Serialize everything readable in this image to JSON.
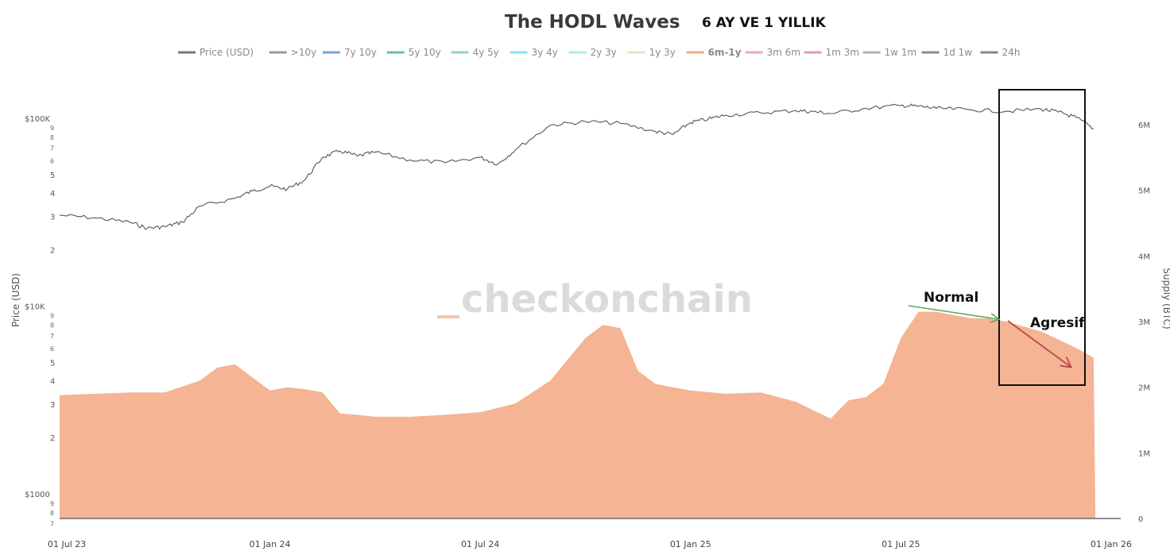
{
  "chart_data": {
    "type": "area",
    "title": "The HODL Waves",
    "subtitle": "6 AY VE 1 YILLIK",
    "watermark": "checkonchain",
    "legend": [
      {
        "label": "Price (USD)",
        "color": "#777777"
      },
      {
        "label": ">10y",
        "color": "#999999"
      },
      {
        "label": "7y 10y",
        "color": "#6fa8dc"
      },
      {
        "label": "5y 10y",
        "color": "#6dbf9e"
      },
      {
        "label": "4y 5y",
        "color": "#8fd8b0"
      },
      {
        "label": "3y 4y",
        "color": "#88e0f0"
      },
      {
        "label": "2y 3y",
        "color": "#b0ecd8"
      },
      {
        "label": "1y 3y",
        "color": "#d8ecc0"
      },
      {
        "label": "6m-1y",
        "color": "#f5a982",
        "active": true
      },
      {
        "label": "3m 6m",
        "color": "#e8a8b8"
      },
      {
        "label": "1m 3m",
        "color": "#e09aa8"
      },
      {
        "label": "1w 1m",
        "color": "#b0b0b8"
      },
      {
        "label": "1d 1w",
        "color": "#8a8aa0"
      },
      {
        "label": "24h",
        "color": "#888888"
      }
    ],
    "y_left": {
      "title": "Price (USD)",
      "scale": "log",
      "major_labels": [
        "$1000",
        "$10K",
        "$100K"
      ],
      "minor_labels": [
        "2",
        "3",
        "4",
        "5",
        "6",
        "7",
        "8",
        "9"
      ]
    },
    "y_right": {
      "title": "Supply (BTC)",
      "labels": [
        "0",
        "1M",
        "2M",
        "3M",
        "4M",
        "5M",
        "6M"
      ]
    },
    "x_labels": [
      "01 Jul 23",
      "01 Jan 24",
      "01 Jul 24",
      "01 Jan 25",
      "01 Jul 25",
      "01 Jan 26"
    ],
    "series": [
      {
        "name": "Price (USD)",
        "axis": "left",
        "color": "#555555",
        "x_month": [
          0,
          1,
          2,
          2.5,
          3,
          3.5,
          4,
          5,
          5.5,
          6,
          6.5,
          7,
          7.5,
          8,
          8.5,
          9,
          10,
          11,
          12,
          12.5,
          13,
          14,
          15,
          16,
          17,
          17.5,
          18,
          18.5,
          19,
          20,
          21,
          21.5,
          22,
          23,
          24,
          24.5,
          25,
          26,
          27,
          28,
          28.5,
          29,
          29.5
        ],
        "values": [
          30500,
          29500,
          28000,
          26000,
          26500,
          28000,
          34000,
          37500,
          41000,
          43500,
          42000,
          47000,
          62000,
          67000,
          63000,
          66000,
          60000,
          58000,
          62000,
          57000,
          68000,
          92000,
          96000,
          94000,
          85000,
          82000,
          95000,
          99000,
          104000,
          107000,
          110000,
          108500,
          106000,
          113000,
          117000,
          116000,
          113000,
          111000,
          109000,
          112000,
          108000,
          101000,
          88000
        ]
      },
      {
        "name": "6m-1y",
        "axis": "right",
        "color": "#f5b493",
        "x_month": [
          0,
          1,
          2,
          3,
          4,
          4.5,
          5,
          5.5,
          6,
          6.5,
          7,
          7.5,
          8,
          8.5,
          9,
          10,
          11,
          12,
          13,
          14,
          15,
          15.5,
          16,
          16.5,
          17,
          17.5,
          18,
          19,
          20,
          21,
          21.5,
          22,
          22.5,
          23,
          23.5,
          24,
          24.5,
          25,
          26,
          26.5,
          27,
          28,
          29,
          29.5,
          29.55
        ],
        "values": [
          1.88,
          1.9,
          1.92,
          1.92,
          2.1,
          2.3,
          2.35,
          2.15,
          1.95,
          2.0,
          1.97,
          1.92,
          1.6,
          1.58,
          1.55,
          1.55,
          1.58,
          1.62,
          1.75,
          2.1,
          2.75,
          2.95,
          2.9,
          2.25,
          2.05,
          2.0,
          1.95,
          1.9,
          1.92,
          1.78,
          1.65,
          1.52,
          1.8,
          1.85,
          2.05,
          2.75,
          3.15,
          3.15,
          3.05,
          3.05,
          3.0,
          2.85,
          2.6,
          2.45,
          0
        ]
      }
    ],
    "x_month_range": [
      0,
      30
    ],
    "y_right_range": [
      0,
      6.5
    ],
    "annotations": [
      {
        "text": "Normal",
        "arrow_color": "#5aa85a",
        "from_month": 25.5,
        "to_month": 28.3
      },
      {
        "text": "Agresif",
        "arrow_color": "#b84a4a",
        "from_month": 28.5,
        "to_month": 30.4
      }
    ]
  }
}
